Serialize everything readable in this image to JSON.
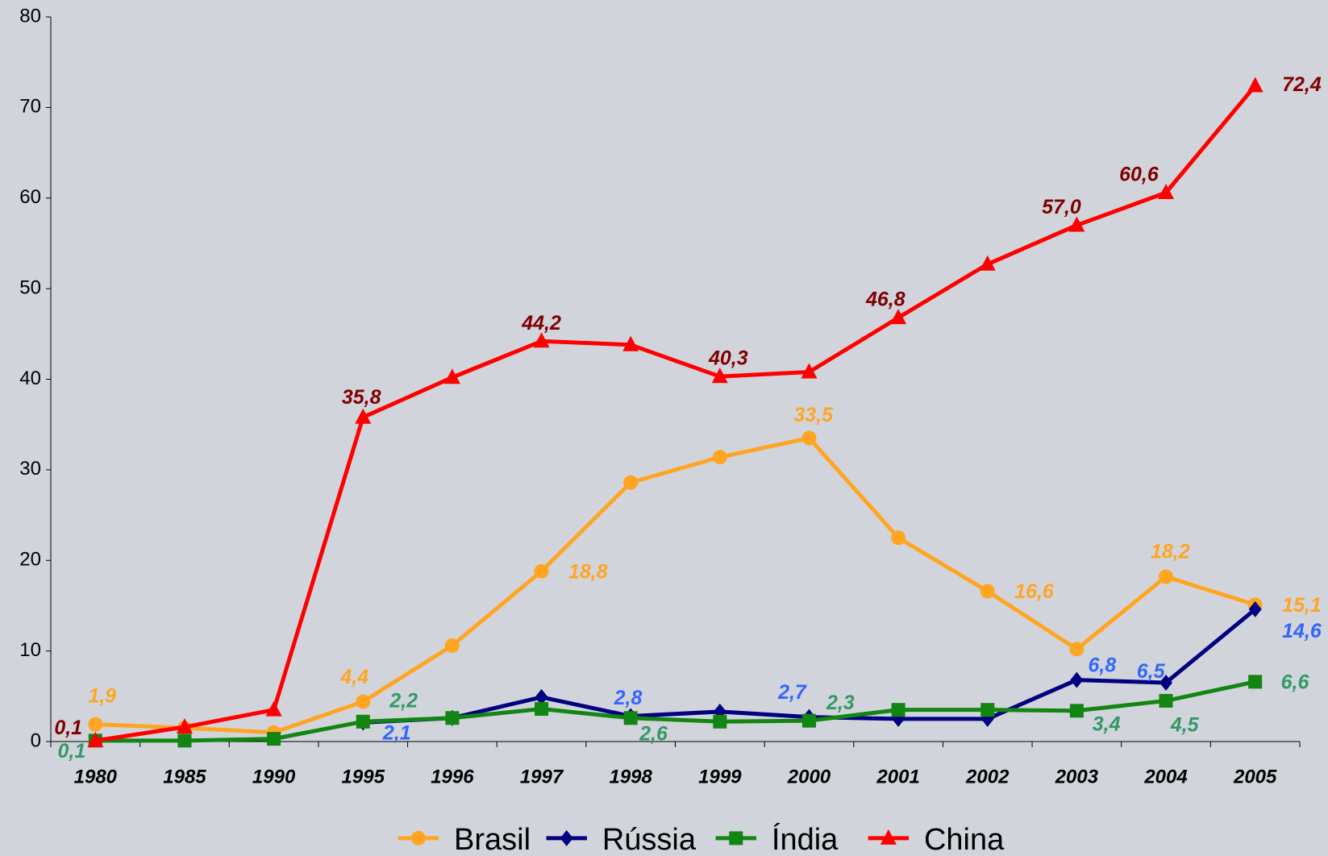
{
  "chart_data": {
    "type": "line",
    "categories": [
      "1980",
      "1985",
      "1990",
      "1995",
      "1996",
      "1997",
      "1998",
      "1999",
      "2000",
      "2001",
      "2002",
      "2003",
      "2004",
      "2005"
    ],
    "ylim": [
      0,
      80
    ],
    "yticks": [
      0,
      10,
      20,
      30,
      40,
      50,
      60,
      70,
      80
    ],
    "grid": false,
    "legend": "bottom",
    "series": [
      {
        "name": "Brasil",
        "color": "#ffa521",
        "label_color": "#ffa521",
        "marker": "circle",
        "values": [
          1.9,
          1.5,
          1.0,
          4.4,
          10.6,
          18.8,
          28.6,
          31.4,
          33.5,
          22.5,
          16.6,
          10.2,
          18.2,
          15.1
        ],
        "value_labels": [
          "1,9",
          null,
          null,
          "4,4",
          null,
          "18,8",
          null,
          null,
          "33,5",
          null,
          "16,6",
          null,
          "18,2",
          "15,1"
        ]
      },
      {
        "name": "Rússia",
        "color": "#000080",
        "label_color": "#3366ff",
        "marker": "diamond",
        "values": [
          null,
          null,
          null,
          2.1,
          2.6,
          4.9,
          2.8,
          3.3,
          2.7,
          2.5,
          2.5,
          6.8,
          6.5,
          14.6
        ],
        "value_labels": [
          null,
          null,
          null,
          "2,1",
          null,
          null,
          "2,8",
          null,
          "2,7",
          null,
          null,
          "6,8",
          "6,5",
          "14,6"
        ]
      },
      {
        "name": "Índia",
        "color": "#128512",
        "label_color": "#339966",
        "marker": "square",
        "values": [
          0.1,
          0.1,
          0.3,
          2.2,
          2.6,
          3.6,
          2.6,
          2.2,
          2.3,
          3.5,
          3.5,
          3.4,
          4.5,
          6.6
        ],
        "value_labels": [
          "0,1",
          null,
          null,
          "2,2",
          null,
          null,
          "2,6",
          null,
          "2,3",
          null,
          null,
          "3,4",
          "4,5",
          "6,6"
        ]
      },
      {
        "name": "China",
        "color": "#ff0000",
        "label_color": "#800000",
        "marker": "triangle",
        "values": [
          0.1,
          1.6,
          3.5,
          35.8,
          40.2,
          44.2,
          43.8,
          40.3,
          40.8,
          46.8,
          52.7,
          57.0,
          60.6,
          72.4
        ],
        "value_labels": [
          "0,1",
          null,
          null,
          "35,8",
          null,
          "44,2",
          null,
          "40,3",
          null,
          "46,8",
          null,
          "57,0",
          "60,6",
          "72,4"
        ]
      }
    ]
  }
}
